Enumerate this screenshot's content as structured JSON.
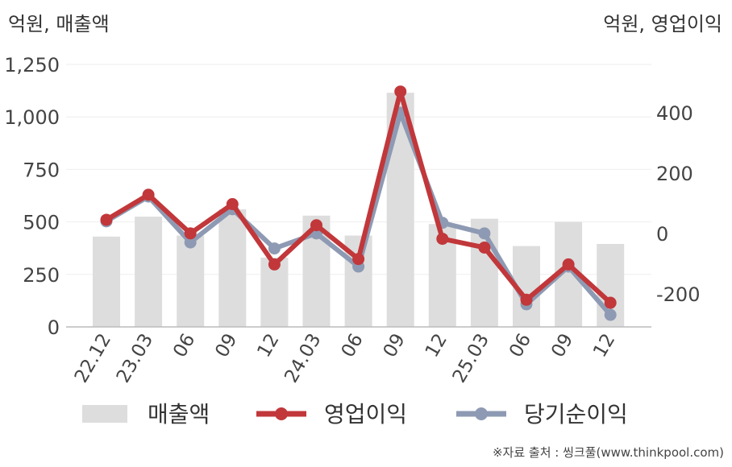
{
  "chart_data": {
    "type": "bar+line",
    "left_axis_label": "억원, 매출액",
    "right_axis_label": "억원, 영업이익",
    "categories": [
      "22.12",
      "23.03",
      "06",
      "09",
      "12",
      "24.03",
      "06",
      "09",
      "12",
      "25.03",
      "06",
      "09",
      "12"
    ],
    "left_ylim": [
      0,
      1250
    ],
    "left_ticks": [
      "0",
      "250",
      "500",
      "750",
      "1,000",
      "1,250"
    ],
    "right_ylim": [
      -310,
      560
    ],
    "right_ticks": [
      "-200",
      "0",
      "200",
      "400"
    ],
    "series": [
      {
        "name": "매출액",
        "type": "bar",
        "axis": "left",
        "values": [
          430,
          525,
          435,
          560,
          330,
          530,
          435,
          1115,
          490,
          515,
          385,
          500,
          395
        ]
      },
      {
        "name": "영업이익",
        "type": "line",
        "axis": "right",
        "values": [
          45,
          128,
          0,
          97,
          -103,
          27,
          -85,
          470,
          -18,
          -47,
          -220,
          -103,
          -230
        ]
      },
      {
        "name": "당기순이익",
        "type": "line",
        "axis": "right",
        "values": [
          40,
          122,
          -30,
          80,
          -50,
          0,
          -110,
          400,
          35,
          0,
          -235,
          -110,
          -270
        ]
      }
    ],
    "grid": true,
    "legend_position": "bottom"
  },
  "colors": {
    "bar": "#dddddd",
    "operating_profit": "#c1373a",
    "net_income": "#8e9ab3",
    "grid": "#eeeeee",
    "axis": "#bbbbbb"
  },
  "legend": [
    "매출액",
    "영업이익",
    "당기순이익"
  ],
  "source_text": "※자료 출처 : 씽크풀(www.thinkpool.com)"
}
